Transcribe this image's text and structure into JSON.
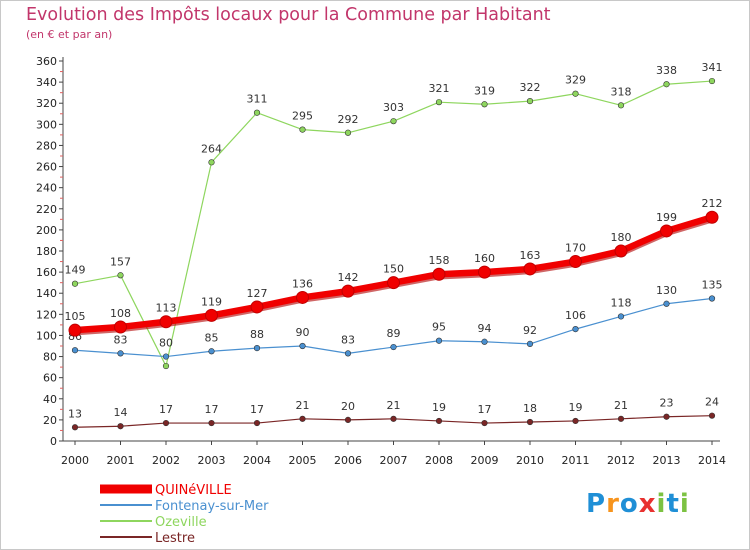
{
  "title": "Evolution des Impôts locaux pour la Commune par Habitant",
  "subtitle": "(en € et par an)",
  "brand": {
    "text": "Proxiti",
    "letters": [
      "P",
      "r",
      "o",
      "x",
      "i",
      "t",
      "i"
    ],
    "colors": [
      "#1f8fd6",
      "#f7941d",
      "#1f8fd6",
      "#e8312f",
      "#7cc242",
      "#1f8fd6",
      "#7cc242"
    ]
  },
  "chart_data": {
    "type": "line",
    "title": "Evolution des Impôts locaux pour la Commune par Habitant",
    "ylabel": "(en € et par an)",
    "xlabel": "",
    "ylim": [
      0,
      360
    ],
    "yticks": [
      0,
      20,
      40,
      60,
      80,
      100,
      120,
      140,
      160,
      180,
      200,
      220,
      240,
      260,
      280,
      300,
      320,
      340,
      360
    ],
    "grid": false,
    "legend": "bottom-left",
    "categories": [
      "2000",
      "2001",
      "2002",
      "2003",
      "2004",
      "2005",
      "2006",
      "2007",
      "2008",
      "2009",
      "2010",
      "2011",
      "2012",
      "2013",
      "2014"
    ],
    "series": [
      {
        "name": "Ozeville",
        "color": "#8ed65e",
        "values": [
          149,
          157,
          71,
          264,
          311,
          295,
          292,
          303,
          321,
          319,
          322,
          329,
          318,
          338,
          341
        ],
        "labels": [
          "149",
          "157",
          "",
          "264",
          "311",
          "295",
          "292",
          "303",
          "321",
          "319",
          "322",
          "329",
          "318",
          "338",
          "341"
        ]
      },
      {
        "name": "Fontenay-sur-Mer",
        "color": "#4a90d0",
        "values": [
          86,
          83,
          80,
          85,
          88,
          90,
          83,
          89,
          95,
          94,
          92,
          106,
          118,
          130,
          135
        ],
        "labels": [
          "86",
          "83",
          "80",
          "85",
          "88",
          "90",
          "83",
          "89",
          "95",
          "94",
          "92",
          "106",
          "118",
          "130",
          "135"
        ]
      },
      {
        "name": "Lestre",
        "color": "#7a2626",
        "values": [
          13,
          14,
          17,
          17,
          17,
          21,
          20,
          21,
          19,
          17,
          18,
          19,
          21,
          23,
          24
        ],
        "labels": [
          "13",
          "14",
          "17",
          "17",
          "17",
          "21",
          "20",
          "21",
          "19",
          "17",
          "18",
          "19",
          "21",
          "23",
          "24"
        ]
      },
      {
        "name": "QUINéVILLE",
        "color": "#f00000",
        "values": [
          105,
          108,
          113,
          119,
          127,
          136,
          142,
          150,
          158,
          160,
          163,
          170,
          180,
          199,
          212
        ],
        "labels": [
          "105",
          "108",
          "113",
          "119",
          "127",
          "136",
          "142",
          "150",
          "158",
          "160",
          "163",
          "170",
          "180",
          "199",
          "212"
        ]
      }
    ],
    "legend_order": [
      "QUINéVILLE",
      "Fontenay-sur-Mer",
      "Ozeville",
      "Lestre"
    ]
  }
}
